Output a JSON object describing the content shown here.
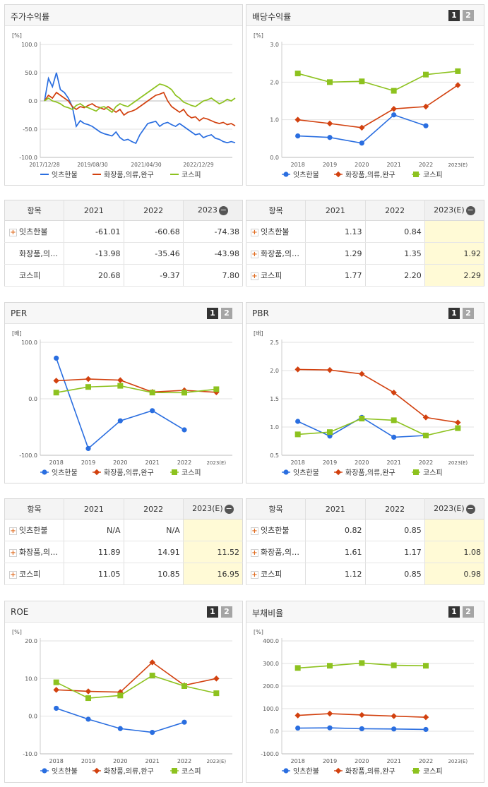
{
  "colors": {
    "c1": "#2a6ee0",
    "c2": "#d2410f",
    "c3": "#8dc21f"
  },
  "charts": [
    {
      "id": "stock",
      "title": "주가수익률",
      "unit": "[%]",
      "paging": false,
      "type": "line",
      "ylim": [
        -100,
        100
      ],
      "yticks": [
        "100.0",
        "50.0",
        "0.0",
        "-50.0",
        "-100.0"
      ],
      "xticks": [
        "2017/12/28",
        "2019/08/30",
        "2021/04/30",
        "2022/12/29"
      ],
      "legend": [
        "잇츠한불",
        "화장품,의류,완구",
        "코스피"
      ],
      "series": [
        {
          "name": "잇츠한불",
          "values": [
            0,
            40,
            25,
            50,
            20,
            15,
            5,
            -10,
            -45,
            -35,
            -40,
            -42,
            -45,
            -50,
            -55,
            -58,
            -60,
            -62,
            -55,
            -65,
            -70,
            -68,
            -72,
            -75,
            -60,
            -50,
            -40,
            -38,
            -36,
            -45,
            -40,
            -38,
            -42,
            -45,
            -40,
            -45,
            -50,
            -55,
            -60,
            -58,
            -65,
            -62,
            -60,
            -66,
            -68,
            -72,
            -74,
            -72,
            -74
          ]
        },
        {
          "name": "화장품,의류,완구",
          "values": [
            0,
            10,
            5,
            15,
            10,
            5,
            0,
            -10,
            -15,
            -10,
            -12,
            -8,
            -5,
            -10,
            -12,
            -15,
            -10,
            -15,
            -20,
            -15,
            -25,
            -20,
            -18,
            -15,
            -10,
            -5,
            0,
            5,
            10,
            12,
            15,
            0,
            -10,
            -15,
            -20,
            -15,
            -25,
            -30,
            -28,
            -35,
            -30,
            -32,
            -35,
            -38,
            -40,
            -38,
            -42,
            -40,
            -44
          ]
        },
        {
          "name": "코스피",
          "values": [
            0,
            5,
            0,
            -2,
            -5,
            -10,
            -12,
            -15,
            -8,
            -5,
            -10,
            -12,
            -15,
            -18,
            -12,
            -10,
            -15,
            -20,
            -10,
            -5,
            -8,
            -10,
            -5,
            0,
            5,
            10,
            15,
            20,
            25,
            30,
            28,
            25,
            20,
            10,
            5,
            -2,
            -5,
            -8,
            -10,
            -5,
            0,
            2,
            5,
            0,
            -5,
            -2,
            3,
            0,
            5
          ]
        }
      ]
    },
    {
      "id": "dividend",
      "title": "배당수익률",
      "unit": "[%]",
      "paging": true,
      "type": "line",
      "ylim": [
        0,
        3
      ],
      "yticks": [
        "3.0",
        "2.0",
        "1.0",
        "0.0"
      ],
      "categories": [
        "2018",
        "2019",
        "2020",
        "2021",
        "2022",
        "2023(E)"
      ],
      "legend": [
        "잇츠한불",
        "화장품,의류,완구",
        "코스피"
      ],
      "series": [
        {
          "name": "잇츠한불",
          "values": [
            0.57,
            0.53,
            0.38,
            1.13,
            0.84,
            null
          ]
        },
        {
          "name": "화장품,의류,완구",
          "values": [
            1.0,
            0.9,
            0.79,
            1.29,
            1.35,
            1.92
          ]
        },
        {
          "name": "코스피",
          "values": [
            2.23,
            2.0,
            2.02,
            1.77,
            2.2,
            2.29
          ]
        }
      ]
    },
    {
      "id": "per",
      "title": "PER",
      "unit": "[배]",
      "paging": true,
      "type": "line",
      "ylim": [
        -100,
        100
      ],
      "yticks": [
        "100.0",
        "0.0",
        "-100.0"
      ],
      "categories": [
        "2018",
        "2019",
        "2020",
        "2021",
        "2022",
        "2023(E)"
      ],
      "legend": [
        "잇츠한불",
        "화장품,의류,완구",
        "코스피"
      ],
      "series": [
        {
          "name": "잇츠한불",
          "values": [
            72,
            -88,
            -39,
            -21,
            -55,
            null
          ]
        },
        {
          "name": "화장품,의류,완구",
          "values": [
            32,
            35,
            33,
            12,
            15,
            11.52
          ]
        },
        {
          "name": "코스피",
          "values": [
            11,
            21,
            23,
            11.05,
            10.85,
            16.95
          ]
        }
      ]
    },
    {
      "id": "pbr",
      "title": "PBR",
      "unit": "[배]",
      "paging": true,
      "type": "line",
      "ylim": [
        0.5,
        2.5
      ],
      "yticks": [
        "2.5",
        "2.0",
        "1.5",
        "1.0",
        "0.5"
      ],
      "categories": [
        "2018",
        "2019",
        "2020",
        "2021",
        "2022",
        "2023(E)"
      ],
      "legend": [
        "잇츠한불",
        "화장품,의류,완구",
        "코스피"
      ],
      "series": [
        {
          "name": "잇츠한불",
          "values": [
            1.1,
            0.84,
            1.17,
            0.82,
            0.85,
            null
          ]
        },
        {
          "name": "화장품,의류,완구",
          "values": [
            2.02,
            2.01,
            1.94,
            1.61,
            1.17,
            1.08
          ]
        },
        {
          "name": "코스피",
          "values": [
            0.87,
            0.91,
            1.15,
            1.12,
            0.85,
            0.98
          ]
        }
      ]
    },
    {
      "id": "roe",
      "title": "ROE",
      "unit": "[%]",
      "paging": true,
      "type": "line",
      "ylim": [
        -10,
        20
      ],
      "yticks": [
        "20.0",
        "10.0",
        "0.0",
        "-10.0"
      ],
      "categories": [
        "2018",
        "2019",
        "2020",
        "2021",
        "2022",
        "2023(E)"
      ],
      "legend": [
        "잇츠한불",
        "화장품,의류,완구",
        "코스피"
      ],
      "series": [
        {
          "name": "잇츠한불",
          "values": [
            2.1,
            -0.8,
            -3.3,
            -4.3,
            -1.6,
            null
          ]
        },
        {
          "name": "화장품,의류,완구",
          "values": [
            7.0,
            6.6,
            6.4,
            14.3,
            8.2,
            10.0
          ]
        },
        {
          "name": "코스피",
          "values": [
            9.0,
            4.8,
            5.5,
            10.8,
            8.0,
            6.1
          ]
        }
      ]
    },
    {
      "id": "debt",
      "title": "부채비율",
      "unit": "[%]",
      "paging": true,
      "type": "line",
      "ylim": [
        -100,
        400
      ],
      "yticks": [
        "400.0",
        "300.0",
        "200.0",
        "100.0",
        "0.0",
        "-100.0"
      ],
      "categories": [
        "2018",
        "2019",
        "2020",
        "2021",
        "2022",
        "2023(E)"
      ],
      "legend": [
        "잇츠한불",
        "화장품,의류,완구",
        "코스피"
      ],
      "series": [
        {
          "name": "잇츠한불",
          "values": [
            14,
            15,
            11,
            10,
            8,
            null
          ]
        },
        {
          "name": "화장품,의류,완구",
          "values": [
            70,
            78,
            72,
            67,
            62,
            null
          ]
        },
        {
          "name": "코스피",
          "values": [
            280,
            290,
            302,
            292,
            290,
            null
          ]
        }
      ]
    }
  ],
  "tables": [
    {
      "id": "stock",
      "header": [
        "항목",
        "2021",
        "2022",
        "2023"
      ],
      "toggle": "−",
      "rows": [
        {
          "label": "잇츠한불",
          "plus": true,
          "cells": [
            "-61.01",
            "-60.68",
            "-74.38"
          ],
          "est": false
        },
        {
          "label": "화장품,의…",
          "plus": false,
          "cells": [
            "-13.98",
            "-35.46",
            "-43.98"
          ],
          "est": false
        },
        {
          "label": "코스피",
          "plus": false,
          "cells": [
            "20.68",
            "-9.37",
            "7.80"
          ],
          "est": false
        }
      ]
    },
    {
      "id": "dividend",
      "header": [
        "항목",
        "2021",
        "2022",
        "2023(E)"
      ],
      "toggle": "−",
      "rows": [
        {
          "label": "잇츠한불",
          "plus": true,
          "cells": [
            "1.13",
            "0.84",
            ""
          ],
          "est": true
        },
        {
          "label": "화장품,의…",
          "plus": true,
          "cells": [
            "1.29",
            "1.35",
            "1.92"
          ],
          "est": true
        },
        {
          "label": "코스피",
          "plus": true,
          "cells": [
            "1.77",
            "2.20",
            "2.29"
          ],
          "est": true
        }
      ]
    },
    {
      "id": "per",
      "header": [
        "항목",
        "2021",
        "2022",
        "2023(E)"
      ],
      "toggle": "−",
      "rows": [
        {
          "label": "잇츠한불",
          "plus": true,
          "cells": [
            "N/A",
            "N/A",
            ""
          ],
          "est": true
        },
        {
          "label": "화장품,의…",
          "plus": true,
          "cells": [
            "11.89",
            "14.91",
            "11.52"
          ],
          "est": true
        },
        {
          "label": "코스피",
          "plus": true,
          "cells": [
            "11.05",
            "10.85",
            "16.95"
          ],
          "est": true
        }
      ]
    },
    {
      "id": "pbr",
      "header": [
        "항목",
        "2021",
        "2022",
        "2023(E)"
      ],
      "toggle": "−",
      "rows": [
        {
          "label": "잇츠한불",
          "plus": true,
          "cells": [
            "0.82",
            "0.85",
            ""
          ],
          "est": true
        },
        {
          "label": "화장품,의…",
          "plus": true,
          "cells": [
            "1.61",
            "1.17",
            "1.08"
          ],
          "est": true
        },
        {
          "label": "코스피",
          "plus": true,
          "cells": [
            "1.12",
            "0.85",
            "0.98"
          ],
          "est": true
        }
      ]
    }
  ],
  "chart_data": [
    {
      "type": "line",
      "title": "주가수익률",
      "ylabel": "[%]",
      "ylim": [
        -100,
        100
      ],
      "x": [
        "2017/12/28",
        "2019/08/30",
        "2021/04/30",
        "2022/12/29"
      ],
      "series": [
        {
          "name": "잇츠한불",
          "values": [
            0,
            -45,
            -40,
            -74
          ]
        },
        {
          "name": "화장품,의류,완구",
          "values": [
            0,
            -12,
            10,
            -44
          ]
        },
        {
          "name": "코스피",
          "values": [
            0,
            -10,
            25,
            5
          ]
        }
      ],
      "legend": "bottom"
    },
    {
      "type": "line",
      "title": "배당수익률",
      "ylabel": "[%]",
      "ylim": [
        0,
        3
      ],
      "categories": [
        "2018",
        "2019",
        "2020",
        "2021",
        "2022",
        "2023(E)"
      ],
      "series": [
        {
          "name": "잇츠한불",
          "values": [
            0.57,
            0.53,
            0.38,
            1.13,
            0.84,
            null
          ]
        },
        {
          "name": "화장품,의류,완구",
          "values": [
            1.0,
            0.9,
            0.79,
            1.29,
            1.35,
            1.92
          ]
        },
        {
          "name": "코스피",
          "values": [
            2.23,
            2.0,
            2.02,
            1.77,
            2.2,
            2.29
          ]
        }
      ],
      "legend": "bottom"
    },
    {
      "type": "line",
      "title": "PER",
      "ylabel": "[배]",
      "ylim": [
        -100,
        100
      ],
      "categories": [
        "2018",
        "2019",
        "2020",
        "2021",
        "2022",
        "2023(E)"
      ],
      "series": [
        {
          "name": "잇츠한불",
          "values": [
            72,
            -88,
            -39,
            -21,
            -55,
            null
          ]
        },
        {
          "name": "화장품,의류,완구",
          "values": [
            32,
            35,
            33,
            12,
            15,
            11.52
          ]
        },
        {
          "name": "코스피",
          "values": [
            11,
            21,
            23,
            11.05,
            10.85,
            16.95
          ]
        }
      ],
      "legend": "bottom"
    },
    {
      "type": "line",
      "title": "PBR",
      "ylabel": "[배]",
      "ylim": [
        0.5,
        2.5
      ],
      "categories": [
        "2018",
        "2019",
        "2020",
        "2021",
        "2022",
        "2023(E)"
      ],
      "series": [
        {
          "name": "잇츠한불",
          "values": [
            1.1,
            0.84,
            1.17,
            0.82,
            0.85,
            null
          ]
        },
        {
          "name": "화장품,의류,완구",
          "values": [
            2.02,
            2.01,
            1.94,
            1.61,
            1.17,
            1.08
          ]
        },
        {
          "name": "코스피",
          "values": [
            0.87,
            0.91,
            1.15,
            1.12,
            0.85,
            0.98
          ]
        }
      ],
      "legend": "bottom"
    },
    {
      "type": "line",
      "title": "ROE",
      "ylabel": "[%]",
      "ylim": [
        -10,
        20
      ],
      "categories": [
        "2018",
        "2019",
        "2020",
        "2021",
        "2022",
        "2023(E)"
      ],
      "series": [
        {
          "name": "잇츠한불",
          "values": [
            2.1,
            -0.8,
            -3.3,
            -4.3,
            -1.6,
            null
          ]
        },
        {
          "name": "화장품,의류,완구",
          "values": [
            7.0,
            6.6,
            6.4,
            14.3,
            8.2,
            10.0
          ]
        },
        {
          "name": "코스피",
          "values": [
            9.0,
            4.8,
            5.5,
            10.8,
            8.0,
            6.1
          ]
        }
      ],
      "legend": "bottom"
    },
    {
      "type": "line",
      "title": "부채비율",
      "ylabel": "[%]",
      "ylim": [
        -100,
        400
      ],
      "categories": [
        "2018",
        "2019",
        "2020",
        "2021",
        "2022",
        "2023(E)"
      ],
      "series": [
        {
          "name": "잇츠한불",
          "values": [
            14,
            15,
            11,
            10,
            8,
            null
          ]
        },
        {
          "name": "화장품,의류,완구",
          "values": [
            70,
            78,
            72,
            67,
            62,
            null
          ]
        },
        {
          "name": "코스피",
          "values": [
            280,
            290,
            302,
            292,
            290,
            null
          ]
        }
      ],
      "legend": "bottom"
    }
  ]
}
